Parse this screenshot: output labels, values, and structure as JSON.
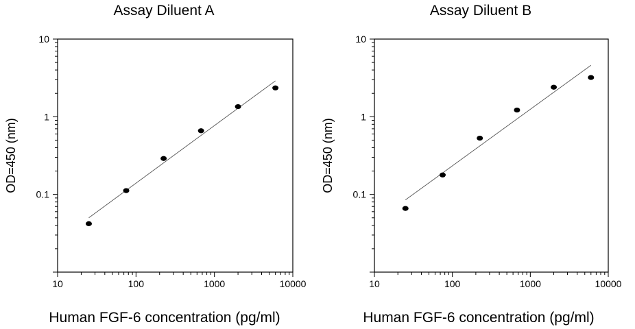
{
  "chart_data": [
    {
      "type": "scatter",
      "title": "Assay Diluent A",
      "xlabel": "Human FGF-6 concentration (pg/ml)",
      "ylabel": "OD=450 (nm)",
      "x_scale": "log",
      "y_scale": "log",
      "xlim": [
        10,
        10000
      ],
      "ylim": [
        0.01,
        10
      ],
      "x_ticks": [
        "10",
        "100",
        "1000",
        "10000"
      ],
      "y_ticks": [
        "0.1",
        "1",
        "10"
      ],
      "grid": false,
      "series": [
        {
          "x": [
            25,
            75,
            225,
            675,
            2000,
            6000
          ],
          "y": [
            0.042,
            0.112,
            0.29,
            0.66,
            1.35,
            2.35
          ]
        }
      ],
      "fit_line": {
        "x": [
          25,
          6000
        ],
        "y": [
          0.05,
          2.9
        ]
      }
    },
    {
      "type": "scatter",
      "title": "Assay Diluent B",
      "xlabel": "Human FGF-6 concentration (pg/ml)",
      "ylabel": "OD=450 (nm)",
      "x_scale": "log",
      "y_scale": "log",
      "xlim": [
        10,
        10000
      ],
      "ylim": [
        0.01,
        10
      ],
      "x_ticks": [
        "10",
        "100",
        "1000",
        "10000"
      ],
      "y_ticks": [
        "0.1",
        "1",
        "10"
      ],
      "grid": false,
      "series": [
        {
          "x": [
            25,
            75,
            225,
            675,
            2000,
            6000
          ],
          "y": [
            0.066,
            0.178,
            0.53,
            1.22,
            2.4,
            3.2
          ]
        }
      ],
      "fit_line": {
        "x": [
          25,
          6000
        ],
        "y": [
          0.085,
          4.6
        ]
      }
    }
  ]
}
